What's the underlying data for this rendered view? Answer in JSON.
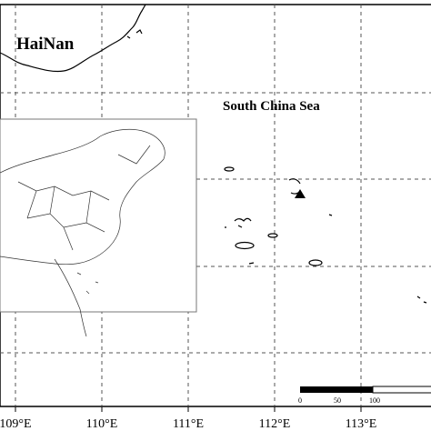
{
  "labels": {
    "island": "HaiNan",
    "sea": "South China Sea"
  },
  "longitude_labels": [
    "109°E",
    "110°E",
    "111°E",
    "112°E",
    "113°E"
  ],
  "scale_bar": [
    "0",
    "50",
    "100"
  ]
}
